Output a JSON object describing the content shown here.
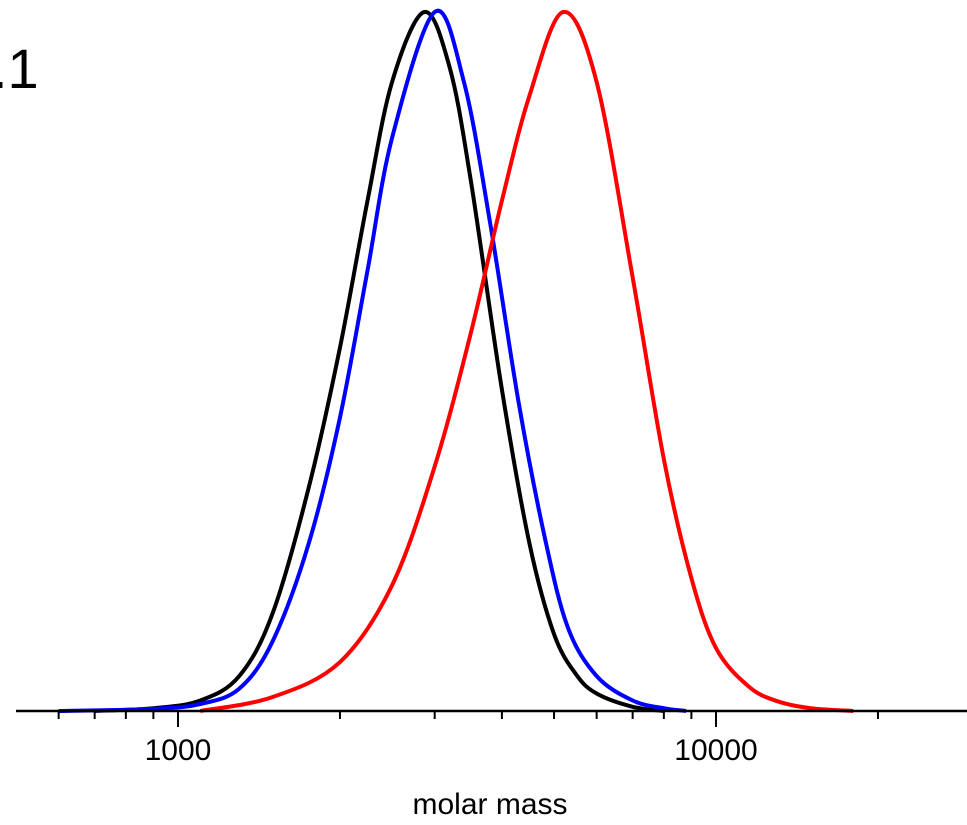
{
  "panel_label": ".1",
  "chart_data": {
    "type": "line",
    "xlabel": "molar mass",
    "ylabel": "",
    "x_scale": "log",
    "xlim": [
      580,
      28000
    ],
    "ylim": [
      0,
      1
    ],
    "x_tick_labels": [
      {
        "value": 1000,
        "label": "1000"
      },
      {
        "value": 10000,
        "label": "10000"
      }
    ],
    "minor_ticks": [
      600,
      700,
      800,
      900,
      2000,
      3000,
      4000,
      5000,
      6000,
      7000,
      8000,
      9000,
      20000
    ],
    "grid": false,
    "series": [
      {
        "color": "#000000",
        "peak": 2870,
        "max": 1.0,
        "range": [
          700,
          8000
        ],
        "x": [
          700,
          900,
          1100,
          1300,
          1500,
          1750,
          2000,
          2250,
          2500,
          2870,
          3200,
          3500,
          4000,
          4500,
          5000,
          5500,
          6000,
          7000,
          8000
        ],
        "y": [
          0.0,
          0.004,
          0.015,
          0.05,
          0.14,
          0.32,
          0.52,
          0.73,
          0.9,
          1.0,
          0.92,
          0.76,
          0.46,
          0.24,
          0.11,
          0.052,
          0.025,
          0.006,
          0.0
        ]
      },
      {
        "color": "#0000ff",
        "peak": 3000,
        "max": 1.0,
        "range": [
          600,
          8800
        ],
        "x": [
          600,
          900,
          1100,
          1300,
          1500,
          1750,
          2000,
          2250,
          2500,
          3000,
          3400,
          3800,
          4300,
          4800,
          5300,
          6000,
          7000,
          8000,
          8800
        ],
        "y": [
          0.0,
          0.003,
          0.01,
          0.032,
          0.1,
          0.24,
          0.42,
          0.63,
          0.82,
          1.0,
          0.9,
          0.7,
          0.44,
          0.25,
          0.12,
          0.05,
          0.015,
          0.004,
          0.0
        ]
      },
      {
        "color": "#ff0000",
        "peak": 5200,
        "max": 1.0,
        "range": [
          1100,
          18000
        ],
        "x": [
          1100,
          1500,
          2000,
          2500,
          3000,
          3500,
          4000,
          4500,
          5200,
          6000,
          7000,
          8000,
          9000,
          10000,
          11500,
          13000,
          15000,
          18000
        ],
        "y": [
          0.0,
          0.02,
          0.07,
          0.18,
          0.35,
          0.54,
          0.73,
          0.88,
          1.0,
          0.9,
          0.62,
          0.36,
          0.19,
          0.09,
          0.035,
          0.014,
          0.004,
          0.0
        ]
      }
    ]
  }
}
